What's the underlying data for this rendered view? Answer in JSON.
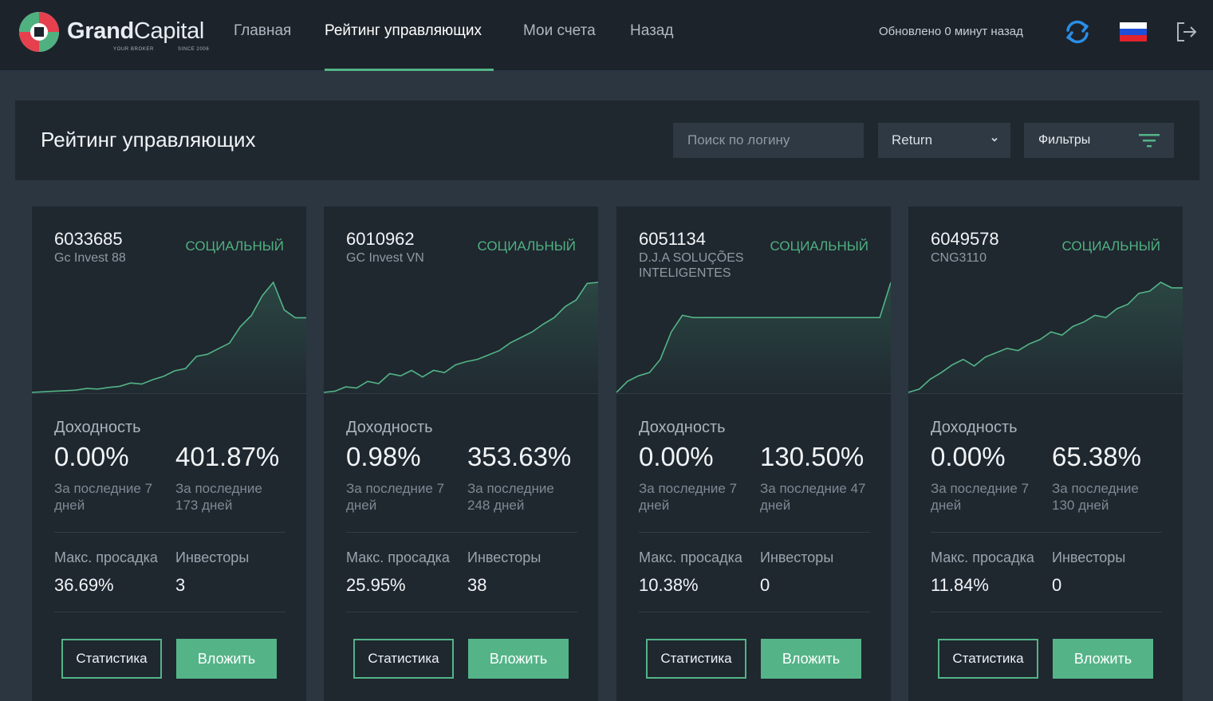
{
  "brand": {
    "name_bold": "Grand",
    "name_light": "Capital",
    "tagline_left": "YOUR BROKER",
    "tagline_right": "SINCE 2006"
  },
  "nav": {
    "items": [
      {
        "label": "Главная",
        "active": false
      },
      {
        "label": "Рейтинг управляющих",
        "active": true
      },
      {
        "label": "Мои счета",
        "active": false
      },
      {
        "label": "Назад",
        "active": false
      }
    ],
    "updated": "Обновлено 0 минут назад",
    "icons": [
      "refresh-icon",
      "russia-flag-icon",
      "logout-icon"
    ]
  },
  "header": {
    "title": "Рейтинг управляющих",
    "search_placeholder": "Поиск по логину",
    "sort_value": "Return",
    "filters_label": "Фильтры"
  },
  "colors": {
    "accent": "#53b487",
    "background": "#2c3641",
    "panel": "#1f272f",
    "topbar": "#1c232b"
  },
  "cards": [
    {
      "id": "6033685",
      "name": "Gc Invest 88",
      "badge": "СОЦИАЛЬНЫЙ",
      "return_label": "Доходность",
      "return_7d": "0.00%",
      "return_total": "401.87%",
      "period_7d": "За последние 7 дней",
      "period_total": "За последние 173 дней",
      "drawdown_label": "Макс. просадка",
      "drawdown": "36.69%",
      "investors_label": "Инвесторы",
      "investors": "3",
      "stats_label": "Статистика",
      "invest_label": "Вложить"
    },
    {
      "id": "6010962",
      "name": "GC Invest VN",
      "badge": "СОЦИАЛЬНЫЙ",
      "return_label": "Доходность",
      "return_7d": "0.98%",
      "return_total": "353.63%",
      "period_7d": "За последние 7 дней",
      "period_total": "За последние 248 дней",
      "drawdown_label": "Макс. просадка",
      "drawdown": "25.95%",
      "investors_label": "Инвесторы",
      "investors": "38",
      "stats_label": "Статистика",
      "invest_label": "Вложить"
    },
    {
      "id": "6051134",
      "name": "D.J.A SOLUÇÕES INTELIGENTES",
      "badge": "СОЦИАЛЬНЫЙ",
      "return_label": "Доходность",
      "return_7d": "0.00%",
      "return_total": "130.50%",
      "period_7d": "За последние 7 дней",
      "period_total": "За последние 47 дней",
      "drawdown_label": "Макс. просадка",
      "drawdown": "10.38%",
      "investors_label": "Инвесторы",
      "investors": "0",
      "stats_label": "Статистика",
      "invest_label": "Вложить"
    },
    {
      "id": "6049578",
      "name": "CNG3110",
      "badge": "СОЦИАЛЬНЫЙ",
      "return_label": "Доходность",
      "return_7d": "0.00%",
      "return_total": "65.38%",
      "period_7d": "За последние 7 дней",
      "period_total": "За последние 130 дней",
      "drawdown_label": "Макс. просадка",
      "drawdown": "11.84%",
      "investors_label": "Инвесторы",
      "investors": "0",
      "stats_label": "Статистика",
      "invest_label": "Вложить"
    }
  ],
  "chart_data": [
    {
      "type": "area",
      "series": [
        {
          "values": [
            0.5,
            1,
            1.5,
            2,
            2.5,
            4,
            3.5,
            5,
            6,
            9,
            8,
            12,
            15,
            20,
            22,
            33,
            35,
            40,
            45,
            60,
            70,
            88,
            100,
            75,
            68,
            68
          ]
        }
      ]
    },
    {
      "type": "area",
      "series": [
        {
          "values": [
            0,
            1,
            5,
            4,
            10,
            8,
            17,
            15,
            20,
            14,
            20,
            18,
            25,
            28,
            30,
            34,
            38,
            45,
            50,
            55,
            62,
            68,
            78,
            84,
            99,
            100
          ]
        }
      ]
    },
    {
      "type": "area",
      "series": [
        {
          "values": [
            0,
            10,
            15,
            18,
            30,
            55,
            70,
            68,
            68,
            68,
            68,
            68,
            68,
            68,
            68,
            68,
            68,
            68,
            68,
            68,
            68,
            68,
            68,
            68,
            68,
            100
          ]
        }
      ]
    },
    {
      "type": "area",
      "series": [
        {
          "values": [
            0,
            3,
            12,
            18,
            25,
            30,
            24,
            32,
            36,
            40,
            38,
            44,
            48,
            55,
            52,
            60,
            64,
            70,
            68,
            76,
            80,
            90,
            92,
            100,
            95,
            95
          ]
        }
      ]
    }
  ]
}
